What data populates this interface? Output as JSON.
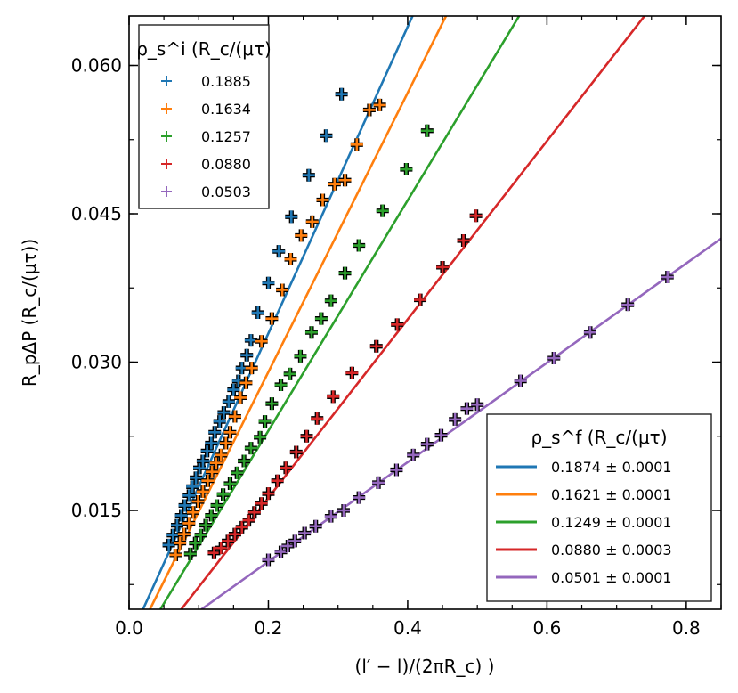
{
  "chart_data": {
    "type": "scatter",
    "xlabel": "(l′ − l)/(2πR_c) )",
    "ylabel": "R_pΔP (R_c/(μτ))",
    "xlim": [
      0.0,
      0.85
    ],
    "ylim": [
      0.005,
      0.065
    ],
    "xticks": [
      0.0,
      0.2,
      0.4,
      0.6,
      0.8
    ],
    "xtick_labels": [
      "0.0",
      "0.2",
      "0.4",
      "0.6",
      "0.8"
    ],
    "yticks": [
      0.015,
      0.03,
      0.045,
      0.06
    ],
    "ytick_labels": [
      "0.015",
      "0.030",
      "0.045",
      "0.060"
    ],
    "legend_markers": {
      "title": "ρ_s^i (R_c/(μτ)",
      "position": "top-left",
      "entries": [
        "0.1885",
        "0.1634",
        "0.1257",
        "0.0880",
        "0.0503"
      ]
    },
    "legend_lines": {
      "title": "ρ_s^f (R_c/(μτ)",
      "position": "bottom-right",
      "entries": [
        "0.1874 ± 0.0001",
        "0.1621 ± 0.0001",
        "0.1249 ± 0.0001",
        "0.0880 ± 0.0003",
        "0.0501 ± 0.0001"
      ]
    },
    "series": [
      {
        "name": "0.1885",
        "color": "#1f77b4",
        "fit": {
          "x0": 0.02,
          "y0": 0.005,
          "x1": 0.407,
          "y1": 0.065
        },
        "points": [
          [
            0.057,
            0.0115
          ],
          [
            0.063,
            0.0125
          ],
          [
            0.069,
            0.0135
          ],
          [
            0.075,
            0.0145
          ],
          [
            0.08,
            0.0155
          ],
          [
            0.086,
            0.0165
          ],
          [
            0.091,
            0.0174
          ],
          [
            0.096,
            0.0183
          ],
          [
            0.101,
            0.0193
          ],
          [
            0.106,
            0.02
          ],
          [
            0.112,
            0.021
          ],
          [
            0.118,
            0.0218
          ],
          [
            0.123,
            0.0229
          ],
          [
            0.13,
            0.024
          ],
          [
            0.136,
            0.0249
          ],
          [
            0.143,
            0.026
          ],
          [
            0.15,
            0.0272
          ],
          [
            0.157,
            0.0281
          ],
          [
            0.162,
            0.0294
          ],
          [
            0.169,
            0.0307
          ],
          [
            0.175,
            0.0322
          ],
          [
            0.185,
            0.035
          ],
          [
            0.2,
            0.038
          ],
          [
            0.215,
            0.0412
          ],
          [
            0.233,
            0.0447
          ],
          [
            0.258,
            0.0489
          ],
          [
            0.283,
            0.0529
          ],
          [
            0.305,
            0.0571
          ]
        ]
      },
      {
        "name": "0.1634",
        "color": "#ff7f0e",
        "fit": {
          "x0": 0.03,
          "y0": 0.005,
          "x1": 0.455,
          "y1": 0.065
        },
        "points": [
          [
            0.067,
            0.0105
          ],
          [
            0.073,
            0.0117
          ],
          [
            0.079,
            0.0126
          ],
          [
            0.086,
            0.0137
          ],
          [
            0.092,
            0.0148
          ],
          [
            0.099,
            0.0159
          ],
          [
            0.106,
            0.0169
          ],
          [
            0.113,
            0.018
          ],
          [
            0.119,
            0.0189
          ],
          [
            0.125,
            0.0198
          ],
          [
            0.132,
            0.0206
          ],
          [
            0.139,
            0.0218
          ],
          [
            0.145,
            0.0229
          ],
          [
            0.152,
            0.0245
          ],
          [
            0.16,
            0.0264
          ],
          [
            0.168,
            0.0279
          ],
          [
            0.176,
            0.0294
          ],
          [
            0.19,
            0.0321
          ],
          [
            0.205,
            0.0344
          ],
          [
            0.22,
            0.0373
          ],
          [
            0.232,
            0.0404
          ],
          [
            0.247,
            0.0428
          ],
          [
            0.263,
            0.0442
          ],
          [
            0.278,
            0.0464
          ],
          [
            0.295,
            0.048
          ],
          [
            0.31,
            0.0484
          ],
          [
            0.327,
            0.052
          ],
          [
            0.345,
            0.0555
          ],
          [
            0.36,
            0.056
          ]
        ]
      },
      {
        "name": "0.1257",
        "color": "#2ca02c",
        "fit": {
          "x0": 0.045,
          "y0": 0.005,
          "x1": 0.56,
          "y1": 0.065
        },
        "points": [
          [
            0.088,
            0.0106
          ],
          [
            0.095,
            0.0117
          ],
          [
            0.103,
            0.0125
          ],
          [
            0.11,
            0.0135
          ],
          [
            0.118,
            0.0145
          ],
          [
            0.126,
            0.0155
          ],
          [
            0.135,
            0.0166
          ],
          [
            0.145,
            0.0177
          ],
          [
            0.155,
            0.0188
          ],
          [
            0.165,
            0.02
          ],
          [
            0.175,
            0.0213
          ],
          [
            0.188,
            0.0224
          ],
          [
            0.195,
            0.024
          ],
          [
            0.205,
            0.0258
          ],
          [
            0.218,
            0.0277
          ],
          [
            0.231,
            0.0288
          ],
          [
            0.246,
            0.0306
          ],
          [
            0.262,
            0.033
          ],
          [
            0.276,
            0.0344
          ],
          [
            0.29,
            0.0362
          ],
          [
            0.31,
            0.039
          ],
          [
            0.33,
            0.0418
          ],
          [
            0.364,
            0.0453
          ],
          [
            0.398,
            0.0495
          ],
          [
            0.428,
            0.0534
          ]
        ]
      },
      {
        "name": "0.0880",
        "color": "#d62728",
        "fit": {
          "x0": 0.075,
          "y0": 0.005,
          "x1": 0.74,
          "y1": 0.065
        },
        "points": [
          [
            0.122,
            0.0107
          ],
          [
            0.132,
            0.0112
          ],
          [
            0.142,
            0.0119
          ],
          [
            0.152,
            0.0126
          ],
          [
            0.162,
            0.0133
          ],
          [
            0.172,
            0.014
          ],
          [
            0.18,
            0.0148
          ],
          [
            0.19,
            0.0157
          ],
          [
            0.2,
            0.0167
          ],
          [
            0.213,
            0.018
          ],
          [
            0.225,
            0.0193
          ],
          [
            0.24,
            0.0209
          ],
          [
            0.255,
            0.0225
          ],
          [
            0.27,
            0.0243
          ],
          [
            0.293,
            0.0265
          ],
          [
            0.32,
            0.0289
          ],
          [
            0.355,
            0.0316
          ],
          [
            0.385,
            0.0338
          ],
          [
            0.418,
            0.0363
          ],
          [
            0.45,
            0.0396
          ],
          [
            0.48,
            0.0423
          ],
          [
            0.498,
            0.0448
          ]
        ]
      },
      {
        "name": "0.0503",
        "color": "#9467bd",
        "fit": {
          "x0": 0.104,
          "y0": 0.005,
          "x1": 0.85,
          "y1": 0.0425
        },
        "points": [
          [
            0.2,
            0.01
          ],
          [
            0.218,
            0.0108
          ],
          [
            0.228,
            0.0114
          ],
          [
            0.238,
            0.0119
          ],
          [
            0.252,
            0.0127
          ],
          [
            0.268,
            0.0134
          ],
          [
            0.29,
            0.0144
          ],
          [
            0.308,
            0.015
          ],
          [
            0.33,
            0.0163
          ],
          [
            0.358,
            0.0178
          ],
          [
            0.384,
            0.0191
          ],
          [
            0.408,
            0.0206
          ],
          [
            0.428,
            0.0217
          ],
          [
            0.448,
            0.0226
          ],
          [
            0.468,
            0.0242
          ],
          [
            0.485,
            0.0253
          ],
          [
            0.5,
            0.0257
          ],
          [
            0.562,
            0.0281
          ],
          [
            0.61,
            0.0304
          ],
          [
            0.662,
            0.033
          ],
          [
            0.716,
            0.0358
          ],
          [
            0.773,
            0.0386
          ]
        ]
      }
    ]
  }
}
